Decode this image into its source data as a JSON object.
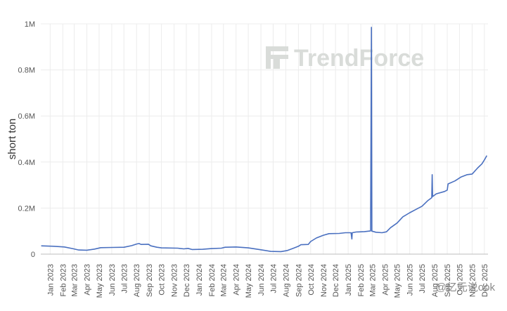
{
  "watermark": {
    "brand": "TrendForce"
  },
  "corner_tag": "@亿元说ook",
  "colors": {
    "line": "#4a70c0",
    "grid": "#ececec",
    "axis": "#bdbdbd"
  },
  "chart_data": {
    "type": "line",
    "title": "",
    "xlabel": "",
    "ylabel": "short ton",
    "ylim": [
      0,
      1000000
    ],
    "yticks": [
      {
        "value": 0,
        "label": "0"
      },
      {
        "value": 200000,
        "label": "0.2M"
      },
      {
        "value": 400000,
        "label": "0.4M"
      },
      {
        "value": 600000,
        "label": "0.6M"
      },
      {
        "value": 800000,
        "label": "0.8M"
      },
      {
        "value": 1000000,
        "label": "1M"
      }
    ],
    "xlim": [
      "2022-12-09",
      "2025-12-10"
    ],
    "xticks": [
      {
        "date": "2023-01-01",
        "label": "Jan 2023"
      },
      {
        "date": "2023-02-01",
        "label": "Feb 2023"
      },
      {
        "date": "2023-03-01",
        "label": "Mar 2023"
      },
      {
        "date": "2023-04-01",
        "label": "Apr 2023"
      },
      {
        "date": "2023-05-01",
        "label": "May 2023"
      },
      {
        "date": "2023-06-01",
        "label": "Jun 2023"
      },
      {
        "date": "2023-07-01",
        "label": "Jul 2023"
      },
      {
        "date": "2023-08-01",
        "label": "Aug 2023"
      },
      {
        "date": "2023-09-01",
        "label": "Sep 2023"
      },
      {
        "date": "2023-10-01",
        "label": "Oct 2023"
      },
      {
        "date": "2023-11-01",
        "label": "Nov 2023"
      },
      {
        "date": "2023-12-01",
        "label": "Dec 2023"
      },
      {
        "date": "2024-01-01",
        "label": "Jan 2024"
      },
      {
        "date": "2024-02-01",
        "label": "Feb 2024"
      },
      {
        "date": "2024-03-01",
        "label": "Mar 2024"
      },
      {
        "date": "2024-04-01",
        "label": "Apr 2024"
      },
      {
        "date": "2024-05-01",
        "label": "May 2024"
      },
      {
        "date": "2024-06-01",
        "label": "Jun 2024"
      },
      {
        "date": "2024-07-01",
        "label": "Jul 2024"
      },
      {
        "date": "2024-08-01",
        "label": "Aug 2024"
      },
      {
        "date": "2024-09-01",
        "label": "Sep 2024"
      },
      {
        "date": "2024-10-01",
        "label": "Oct 2024"
      },
      {
        "date": "2024-11-01",
        "label": "Nov 2024"
      },
      {
        "date": "2024-12-01",
        "label": "Dec 2024"
      },
      {
        "date": "2025-01-01",
        "label": "Jan 2025"
      },
      {
        "date": "2025-02-01",
        "label": "Feb 2025"
      },
      {
        "date": "2025-03-01",
        "label": "Mar 2025"
      },
      {
        "date": "2025-04-01",
        "label": "Apr 2025"
      },
      {
        "date": "2025-05-01",
        "label": "May 2025"
      },
      {
        "date": "2025-06-01",
        "label": "Jun 2025"
      },
      {
        "date": "2025-07-01",
        "label": "Jul 2025"
      },
      {
        "date": "2025-08-01",
        "label": "Aug 2025"
      },
      {
        "date": "2025-09-01",
        "label": "Sep 2025"
      },
      {
        "date": "2025-10-01",
        "label": "Oct 2025"
      },
      {
        "date": "2025-11-01",
        "label": "Nov 2025"
      },
      {
        "date": "2025-12-01",
        "label": "Dec 2025"
      }
    ],
    "grid": true,
    "legend": "none",
    "series": [
      {
        "points": [
          [
            "2022-12-10",
            36000
          ],
          [
            "2023-01-10",
            34000
          ],
          [
            "2023-02-05",
            31000
          ],
          [
            "2023-02-25",
            24000
          ],
          [
            "2023-03-12",
            18000
          ],
          [
            "2023-04-01",
            17000
          ],
          [
            "2023-04-20",
            22000
          ],
          [
            "2023-05-05",
            28000
          ],
          [
            "2023-06-01",
            29000
          ],
          [
            "2023-07-01",
            30000
          ],
          [
            "2023-07-20",
            37000
          ],
          [
            "2023-08-01",
            44000
          ],
          [
            "2023-08-07",
            46000
          ],
          [
            "2023-08-12",
            42000
          ],
          [
            "2023-08-30",
            43000
          ],
          [
            "2023-09-05",
            36000
          ],
          [
            "2023-09-20",
            30000
          ],
          [
            "2023-10-01",
            27000
          ],
          [
            "2023-11-10",
            26000
          ],
          [
            "2023-11-25",
            23000
          ],
          [
            "2023-12-05",
            25000
          ],
          [
            "2023-12-15",
            20000
          ],
          [
            "2024-01-10",
            21000
          ],
          [
            "2024-02-01",
            24000
          ],
          [
            "2024-02-25",
            26000
          ],
          [
            "2024-03-05",
            30000
          ],
          [
            "2024-04-01",
            31000
          ],
          [
            "2024-05-01",
            27000
          ],
          [
            "2024-06-01",
            19000
          ],
          [
            "2024-06-25",
            12000
          ],
          [
            "2024-07-20",
            11000
          ],
          [
            "2024-08-05",
            16000
          ],
          [
            "2024-08-20",
            26000
          ],
          [
            "2024-09-01",
            34000
          ],
          [
            "2024-09-07",
            41000
          ],
          [
            "2024-09-25",
            42000
          ],
          [
            "2024-10-01",
            55000
          ],
          [
            "2024-10-15",
            70000
          ],
          [
            "2024-11-01",
            82000
          ],
          [
            "2024-11-15",
            89000
          ],
          [
            "2024-12-10",
            90000
          ],
          [
            "2024-12-25",
            93000
          ],
          [
            "2025-01-08",
            93000
          ],
          [
            "2025-01-10",
            66000
          ],
          [
            "2025-01-11",
            93000
          ],
          [
            "2025-01-20",
            96000
          ],
          [
            "2025-02-10",
            98000
          ],
          [
            "2025-02-25",
            101000
          ],
          [
            "2025-02-27",
            985000
          ],
          [
            "2025-02-28",
            100000
          ],
          [
            "2025-03-10",
            95000
          ],
          [
            "2025-03-25",
            93000
          ],
          [
            "2025-04-05",
            97000
          ],
          [
            "2025-04-15",
            115000
          ],
          [
            "2025-05-01",
            135000
          ],
          [
            "2025-05-15",
            162000
          ],
          [
            "2025-06-01",
            180000
          ],
          [
            "2025-06-15",
            193000
          ],
          [
            "2025-07-01",
            208000
          ],
          [
            "2025-07-15",
            232000
          ],
          [
            "2025-07-25",
            245000
          ],
          [
            "2025-07-26",
            345000
          ],
          [
            "2025-07-27",
            250000
          ],
          [
            "2025-08-05",
            262000
          ],
          [
            "2025-08-25",
            272000
          ],
          [
            "2025-09-01",
            278000
          ],
          [
            "2025-09-03",
            305000
          ],
          [
            "2025-09-20",
            318000
          ],
          [
            "2025-10-05",
            335000
          ],
          [
            "2025-10-20",
            345000
          ],
          [
            "2025-11-01",
            348000
          ],
          [
            "2025-11-15",
            375000
          ],
          [
            "2025-11-25",
            392000
          ],
          [
            "2025-12-02",
            412000
          ],
          [
            "2025-12-07",
            428000
          ]
        ]
      }
    ]
  }
}
